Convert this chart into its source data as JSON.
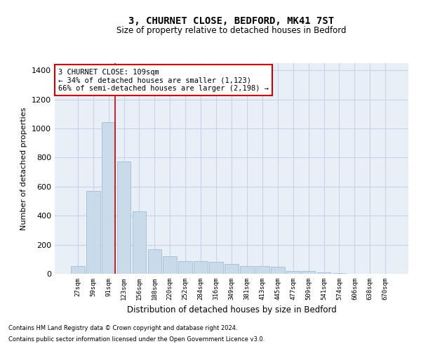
{
  "title_line1": "3, CHURNET CLOSE, BEDFORD, MK41 7ST",
  "title_line2": "Size of property relative to detached houses in Bedford",
  "xlabel": "Distribution of detached houses by size in Bedford",
  "ylabel": "Number of detached properties",
  "bar_color": "#c9daea",
  "bar_edge_color": "#9ab5cc",
  "grid_color": "#c5d5e5",
  "bg_color": "#e8eff7",
  "vline_color": "#cc0000",
  "annotation_text": "3 CHURNET CLOSE: 109sqm\n← 34% of detached houses are smaller (1,123)\n66% of semi-detached houses are larger (2,198) →",
  "annotation_box_color": "#cc0000",
  "categories": [
    "27sqm",
    "59sqm",
    "91sqm",
    "123sqm",
    "156sqm",
    "188sqm",
    "220sqm",
    "252sqm",
    "284sqm",
    "316sqm",
    "349sqm",
    "381sqm",
    "413sqm",
    "445sqm",
    "477sqm",
    "509sqm",
    "541sqm",
    "574sqm",
    "606sqm",
    "638sqm",
    "670sqm"
  ],
  "values": [
    55,
    570,
    1045,
    775,
    430,
    170,
    120,
    85,
    85,
    80,
    70,
    55,
    55,
    50,
    20,
    18,
    10,
    5,
    0,
    0,
    0
  ],
  "ylim": [
    0,
    1450
  ],
  "yticks": [
    0,
    200,
    400,
    600,
    800,
    1000,
    1200,
    1400
  ],
  "footer_line1": "Contains HM Land Registry data © Crown copyright and database right 2024.",
  "footer_line2": "Contains public sector information licensed under the Open Government Licence v3.0."
}
